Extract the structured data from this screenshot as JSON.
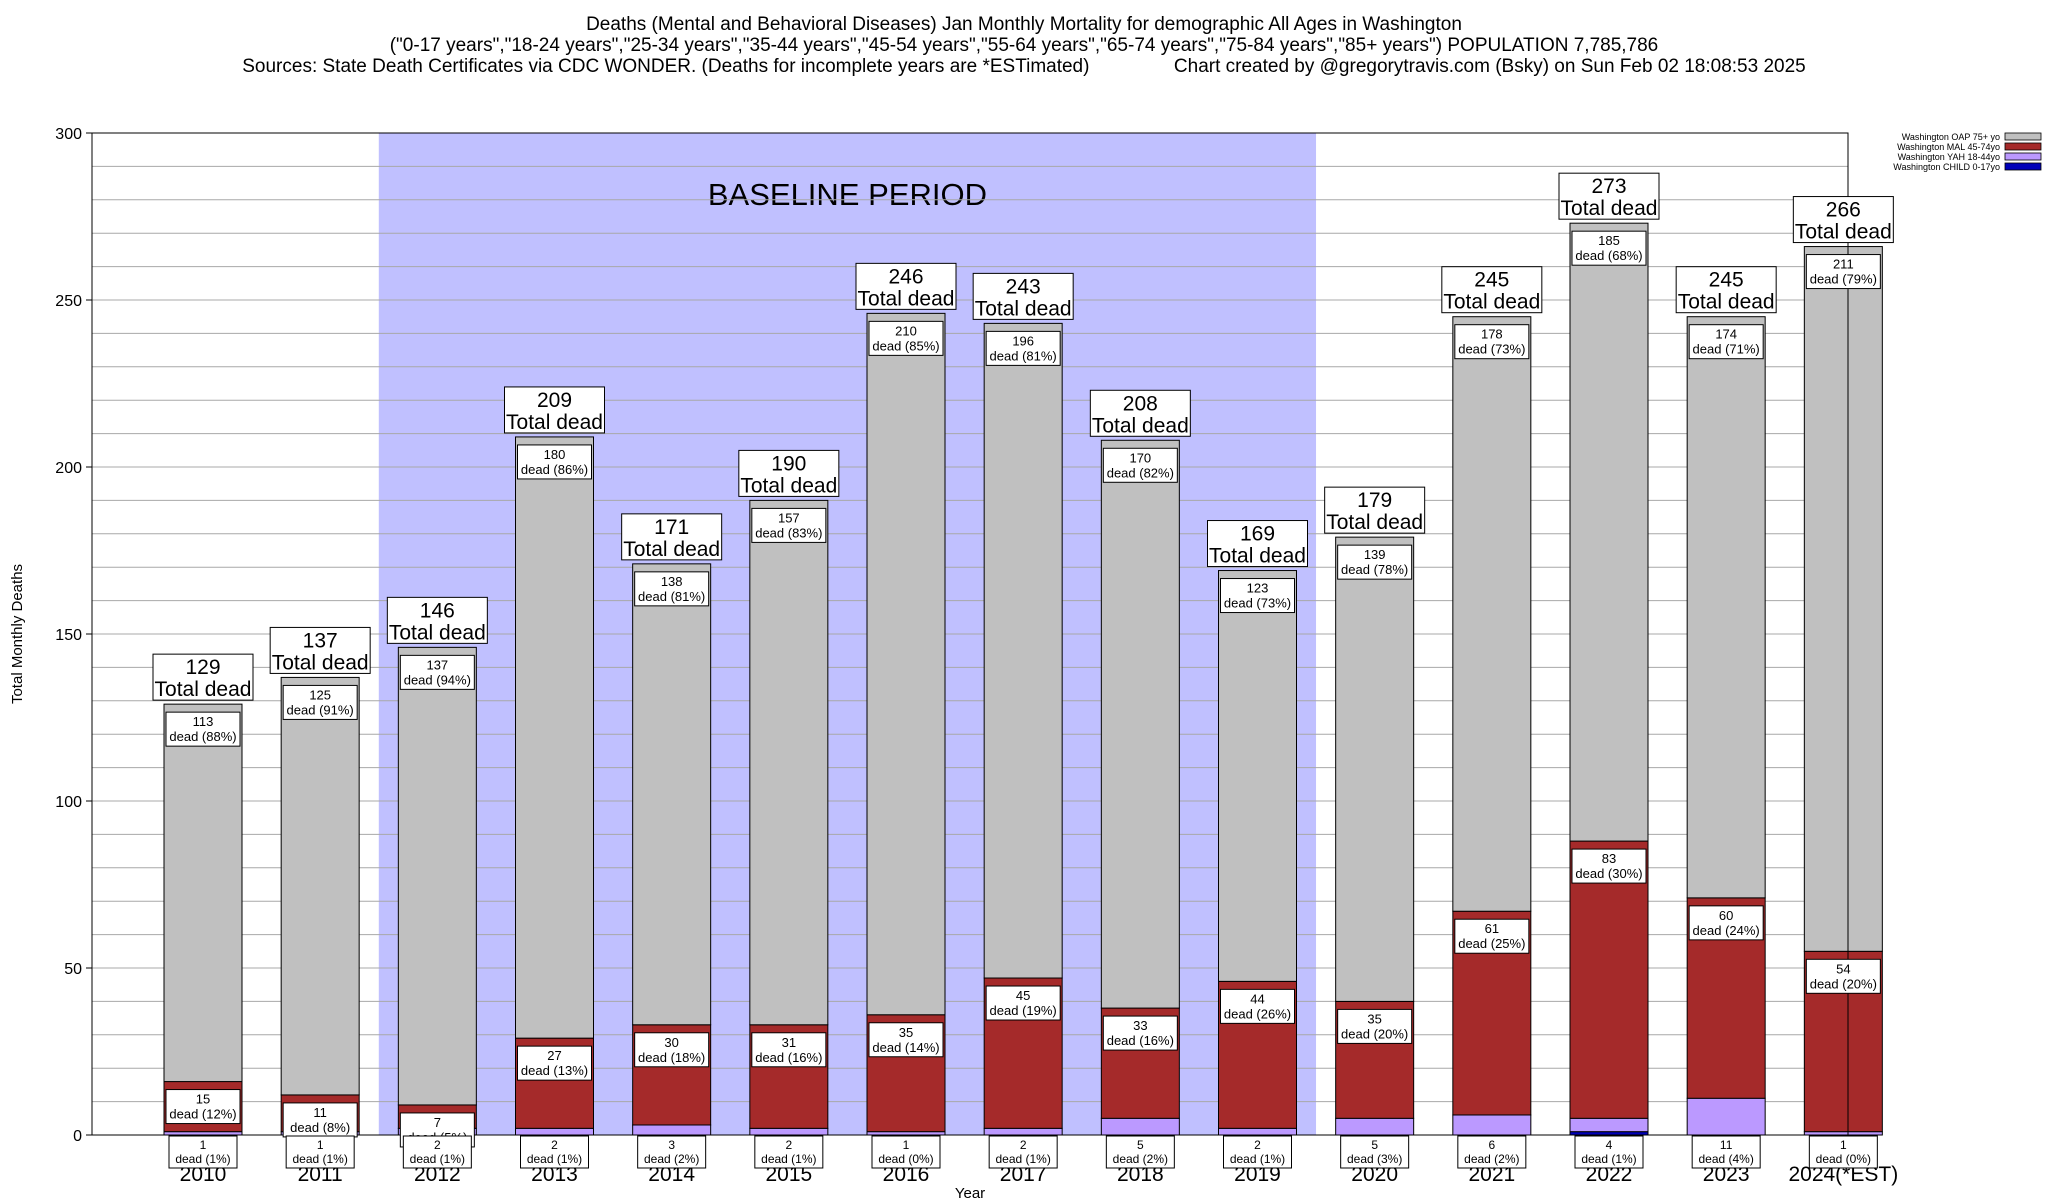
{
  "title_lines": [
    "Deaths (Mental and Behavioral Diseases) Jan Monthly Mortality for demographic All Ages in Washington",
    "(\"0-17 years\",\"18-24 years\",\"25-34 years\",\"35-44 years\",\"45-54 years\",\"55-64 years\",\"65-74 years\",\"75-84 years\",\"85+ years\") POPULATION 7,785,786",
    "Sources: State Death Certificates via CDC WONDER. (Deaths for incomplete years are *ESTimated)                Chart created by @gregorytravis.com (Bsky) on Sun Feb 02 18:08:53 2025"
  ],
  "chart_data": {
    "type": "bar",
    "stacked": true,
    "xlabel": "Year",
    "ylabel": "Total Monthly Deaths",
    "ylim": [
      0,
      300
    ],
    "yticks": [
      0,
      50,
      100,
      150,
      200,
      250,
      300
    ],
    "categories": [
      "2010",
      "2011",
      "2012",
      "2013",
      "2014",
      "2015",
      "2016",
      "2017",
      "2018",
      "2019",
      "2020",
      "2021",
      "2022",
      "2023",
      "2024(*EST)"
    ],
    "baseline_label": "BASELINE PERIOD",
    "baseline_range": [
      "2012",
      "2019"
    ],
    "total_suffix": "Total dead",
    "segment_label_word": "dead",
    "grid": true,
    "legend_position": "top-right",
    "totals": [
      129,
      137,
      146,
      209,
      171,
      190,
      246,
      243,
      208,
      169,
      179,
      245,
      273,
      245,
      266
    ],
    "series": [
      {
        "name": "Washington CHILD 0-17yo",
        "color": "#0000b8",
        "values": [
          0,
          0,
          0,
          0,
          0,
          0,
          0,
          0,
          0,
          0,
          0,
          0,
          1,
          0,
          0
        ],
        "labels": []
      },
      {
        "name": "Washington YAH 18-44yo",
        "color": "#bb99ff",
        "values": [
          1,
          1,
          2,
          2,
          3,
          2,
          1,
          2,
          5,
          2,
          5,
          6,
          4,
          11,
          1
        ],
        "labels": [
          "1",
          "1",
          "2",
          "2",
          "3",
          "2",
          "1",
          "2",
          "5",
          "2",
          "5",
          "6",
          "4",
          "11",
          "1"
        ],
        "pcts": [
          "(1%)",
          "(1%)",
          "(1%)",
          "(1%)",
          "(2%)",
          "(1%)",
          "(0%)",
          "(1%)",
          "(2%)",
          "(1%)",
          "(3%)",
          "(2%)",
          "(1%)",
          "(4%)",
          "(0%)"
        ]
      },
      {
        "name": "Washington MAL 45-74yo",
        "color": "#a52a2a",
        "values": [
          15,
          11,
          7,
          27,
          30,
          31,
          35,
          45,
          33,
          44,
          35,
          61,
          83,
          60,
          54
        ],
        "labels": [
          "15",
          "11",
          "7",
          "27",
          "30",
          "31",
          "35",
          "45",
          "33",
          "44",
          "35",
          "61",
          "83",
          "60",
          "54"
        ],
        "pcts": [
          "(12%)",
          "(8%)",
          "(5%)",
          "(13%)",
          "(18%)",
          "(16%)",
          "(14%)",
          "(19%)",
          "(16%)",
          "(26%)",
          "(20%)",
          "(25%)",
          "(30%)",
          "(24%)",
          "(20%)"
        ]
      },
      {
        "name": "Washington OAP 75+ yo",
        "color": "#c0c0c0",
        "values": [
          113,
          125,
          137,
          180,
          138,
          157,
          210,
          196,
          170,
          123,
          139,
          178,
          185,
          174,
          211
        ],
        "labels": [
          "113",
          "125",
          "137",
          "180",
          "138",
          "157",
          "210",
          "196",
          "170",
          "123",
          "139",
          "178",
          "185",
          "174",
          "211"
        ],
        "pcts": [
          "(88%)",
          "(91%)",
          "(94%)",
          "(86%)",
          "(81%)",
          "(83%)",
          "(85%)",
          "(81%)",
          "(82%)",
          "(73%)",
          "(78%)",
          "(73%)",
          "(68%)",
          "(71%)",
          "(79%)"
        ]
      }
    ]
  }
}
